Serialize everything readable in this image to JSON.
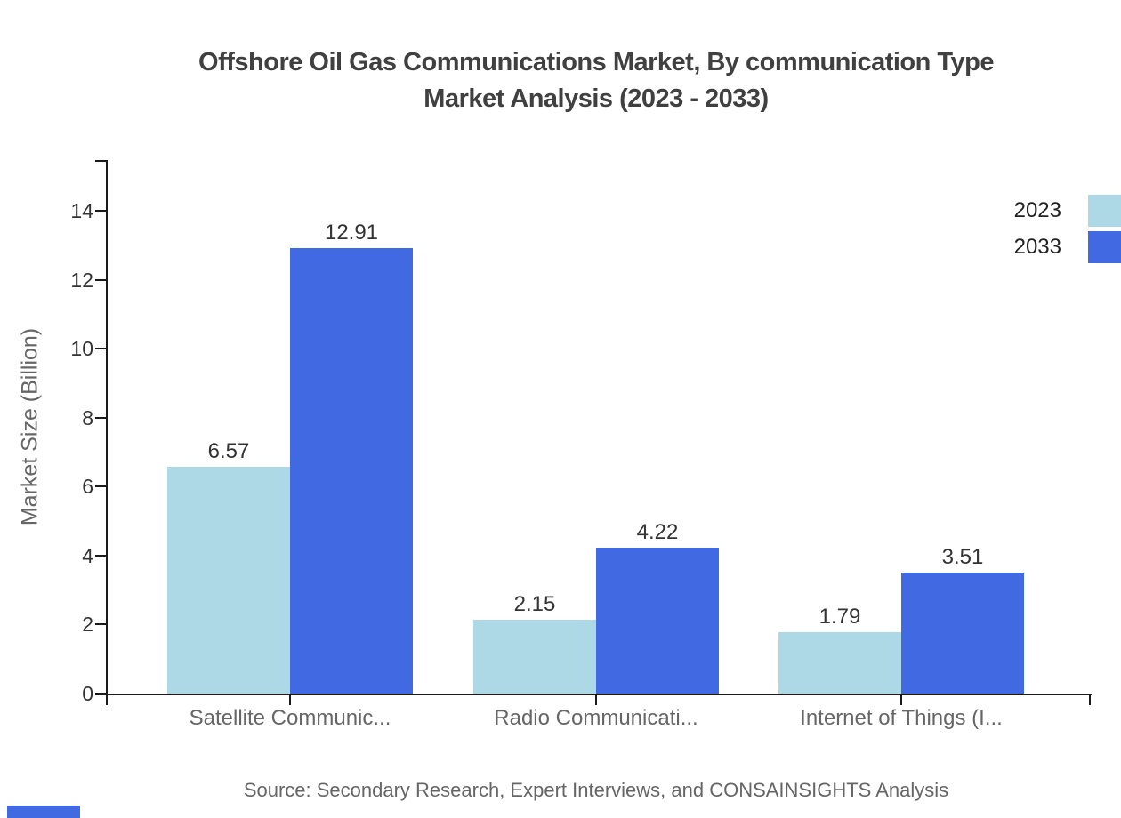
{
  "title": {
    "line1": "Offshore Oil Gas Communications Market, By communication Type",
    "line2": "Market Analysis (2023 - 2033)"
  },
  "source": {
    "text": "Source: Secondary Research, Expert Interviews, and CONSAINSIGHTS Analysis"
  },
  "colors": {
    "series_2023": "#add8e6",
    "series_2033": "#4169e1",
    "axis": "#1a1a1a",
    "title_text": "#404040",
    "muted_text": "#666666",
    "tick_text": "#333333",
    "brand_mark": "#4169e1"
  },
  "chart_data": {
    "type": "bar",
    "title": "Offshore Oil Gas Communications Market, By communication Type Market Analysis (2023 - 2033)",
    "categories": [
      "Satellite Communic...",
      "Radio Communicati...",
      "Internet of Things (I..."
    ],
    "series": [
      {
        "name": "2023",
        "color": "#add8e6",
        "values": [
          6.57,
          2.15,
          1.79
        ]
      },
      {
        "name": "2033",
        "color": "#4169e1",
        "values": [
          12.91,
          4.22,
          3.51
        ]
      }
    ],
    "xlabel": "",
    "ylabel": "Market Size (Billion)",
    "ylim": [
      0,
      14
    ],
    "ytick_step": 2,
    "yticks": [
      0,
      2,
      4,
      6,
      8,
      10,
      12,
      14
    ],
    "grid": false,
    "legend_position": "top-right",
    "value_labels_shown": true
  }
}
